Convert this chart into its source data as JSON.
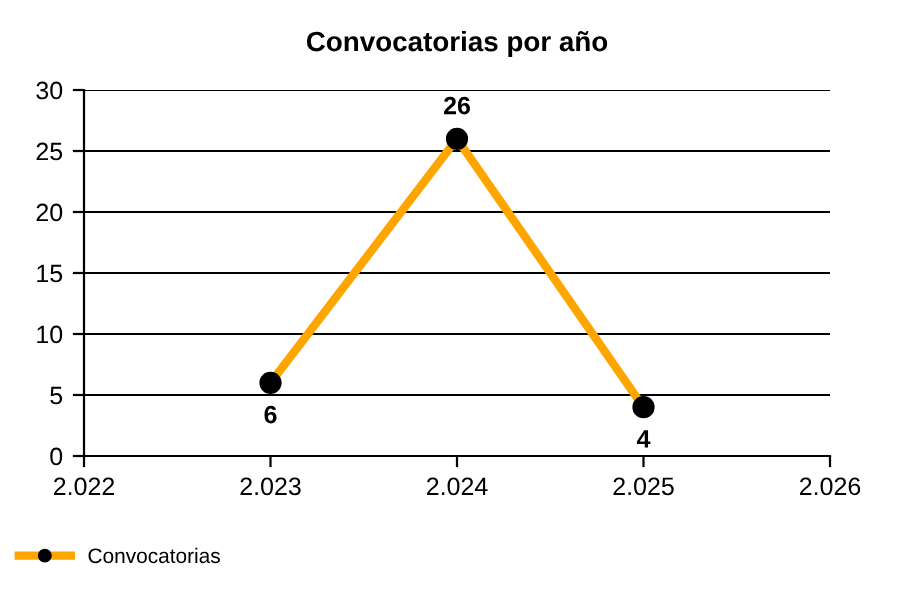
{
  "chart_data": {
    "type": "line",
    "title": "Convocatorias por año",
    "x": [
      2023,
      2024,
      2025
    ],
    "series": [
      {
        "name": "Convocatorias",
        "color": "#ffa500",
        "values": [
          6,
          26,
          4
        ]
      }
    ],
    "xlim": [
      2022,
      2026
    ],
    "xticks": [
      {
        "value": 2022,
        "label": "2.022"
      },
      {
        "value": 2023,
        "label": "2.023"
      },
      {
        "value": 2024,
        "label": "2.024"
      },
      {
        "value": 2025,
        "label": "2.025"
      },
      {
        "value": 2026,
        "label": "2.026"
      }
    ],
    "ylim": [
      0,
      30
    ],
    "yticks": [
      0,
      5,
      10,
      15,
      20,
      25,
      30
    ],
    "grid": "y",
    "legend": "bottom left",
    "marker": "circle",
    "line_style": "solid",
    "data_labels": true
  }
}
